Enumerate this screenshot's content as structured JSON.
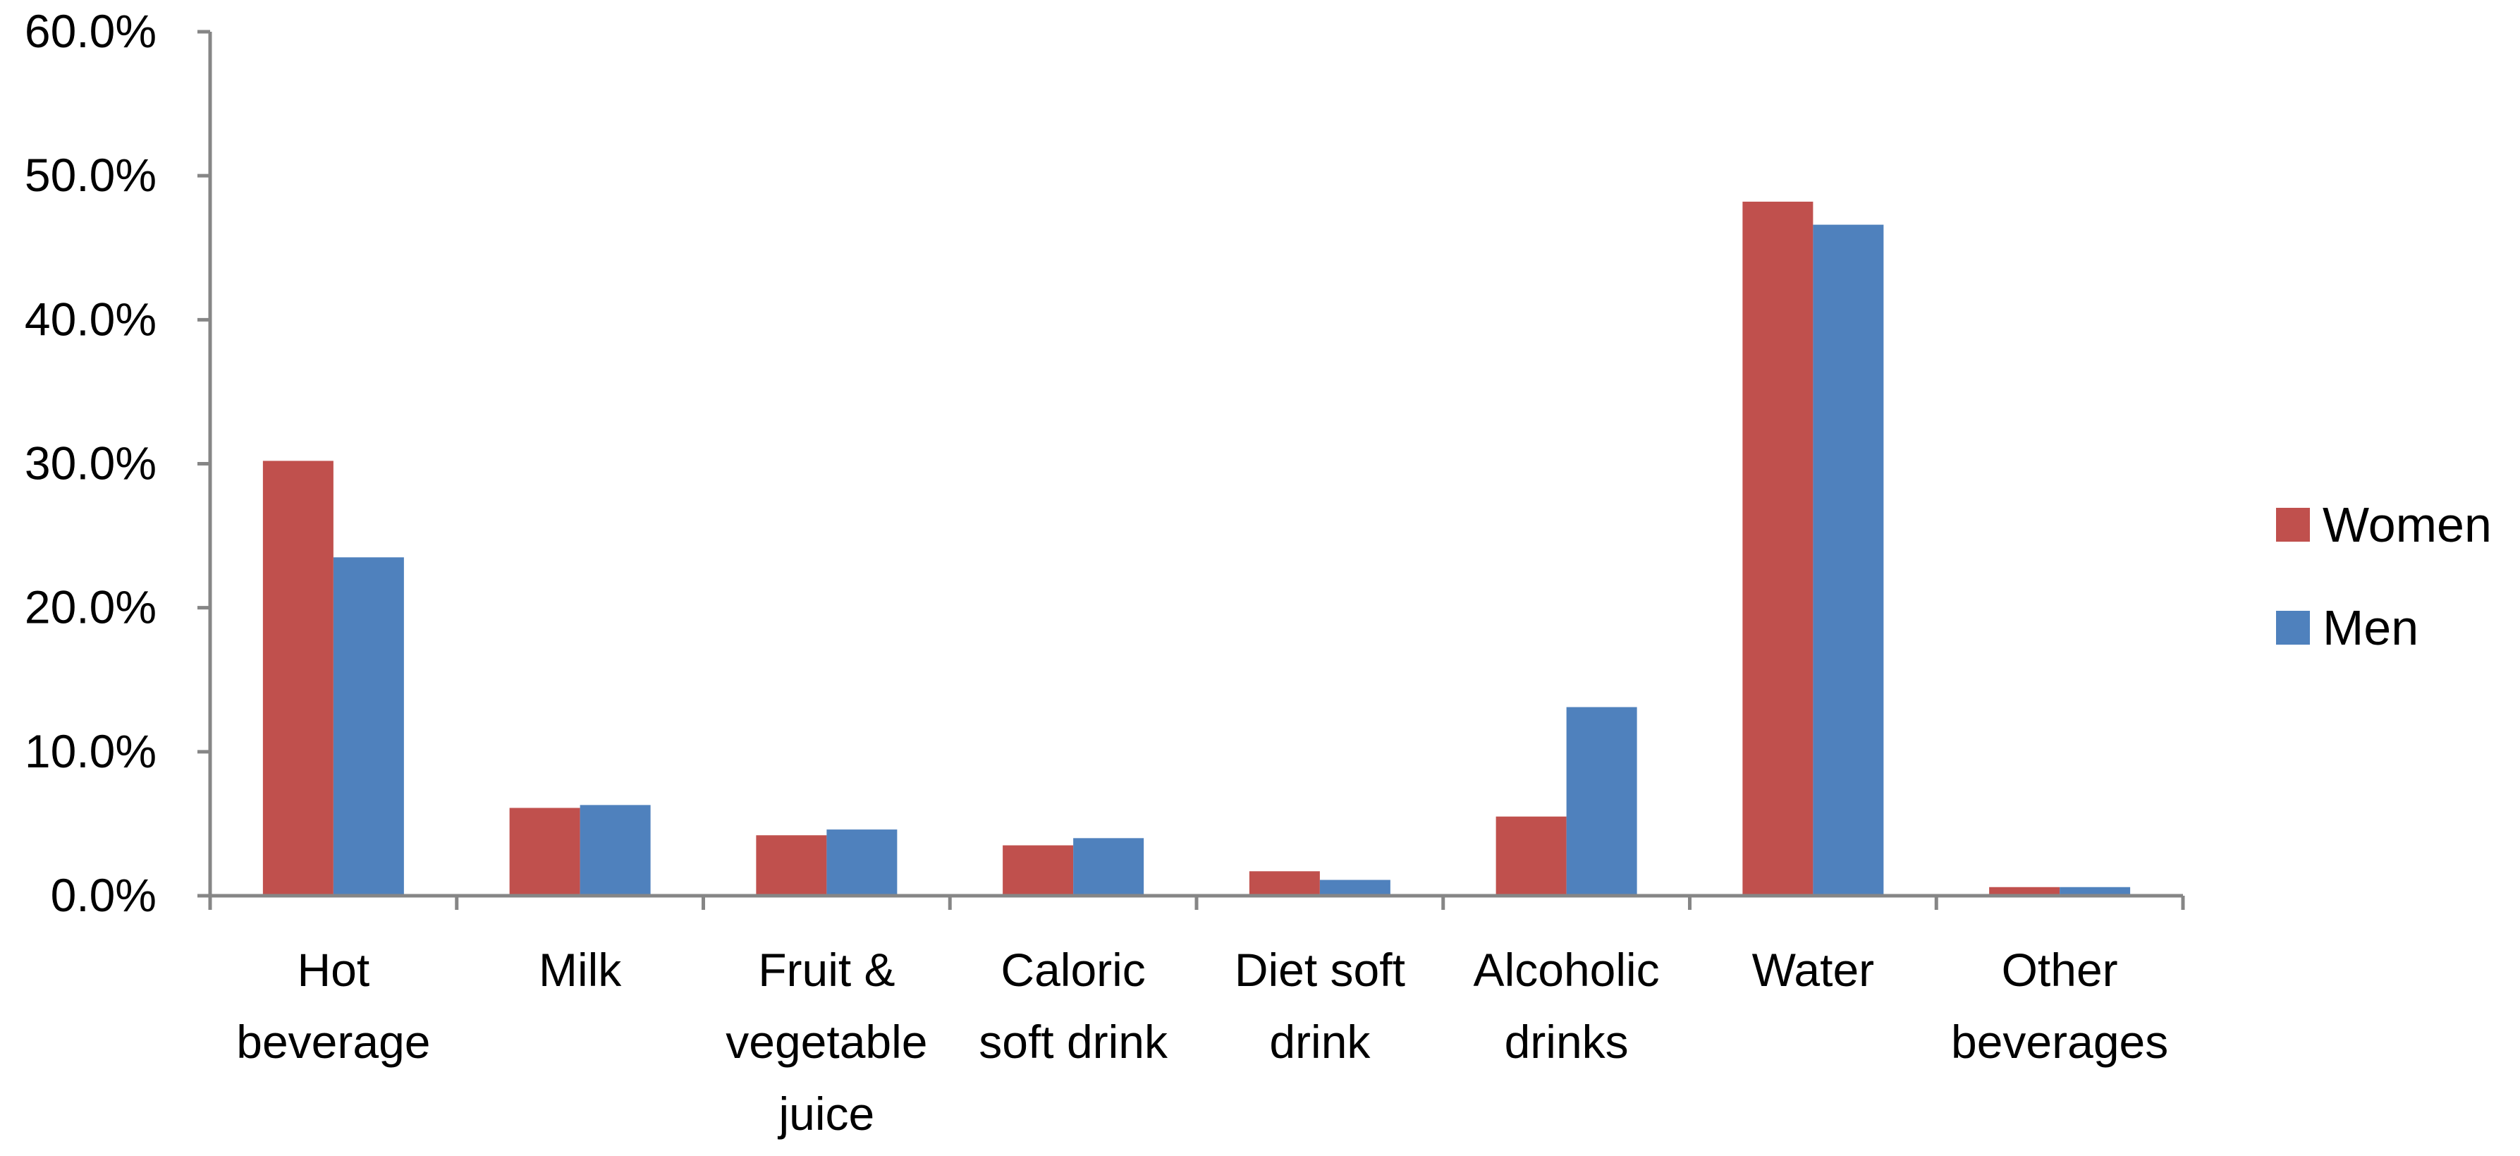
{
  "chart_data": {
    "type": "bar",
    "title": "",
    "xlabel": "",
    "ylabel": "",
    "categories": [
      [
        "Hot",
        "beverage"
      ],
      [
        "Milk"
      ],
      [
        "Fruit &",
        "vegetable",
        "juice"
      ],
      [
        "Caloric",
        "soft drink"
      ],
      [
        "Diet soft",
        "drink"
      ],
      [
        "Alcoholic",
        "drinks"
      ],
      [
        "Water"
      ],
      [
        "Other",
        "beverages"
      ]
    ],
    "series": [
      {
        "name": "Women",
        "color": "#C0504D",
        "values": [
          30.2,
          6.1,
          4.2,
          3.5,
          1.7,
          5.5,
          48.2,
          0.6
        ]
      },
      {
        "name": "Men",
        "color": "#4F81BD",
        "values": [
          23.5,
          6.3,
          4.6,
          4.0,
          1.1,
          13.1,
          46.6,
          0.6
        ]
      }
    ],
    "ylim": [
      0,
      60
    ],
    "yticks": [
      0,
      10,
      20,
      30,
      40,
      50,
      60
    ],
    "ytick_labels": [
      "0.0%",
      "10.0%",
      "20.0%",
      "30.0%",
      "40.0%",
      "50.0%",
      "60.0%"
    ],
    "grid": false,
    "legend": "right"
  }
}
